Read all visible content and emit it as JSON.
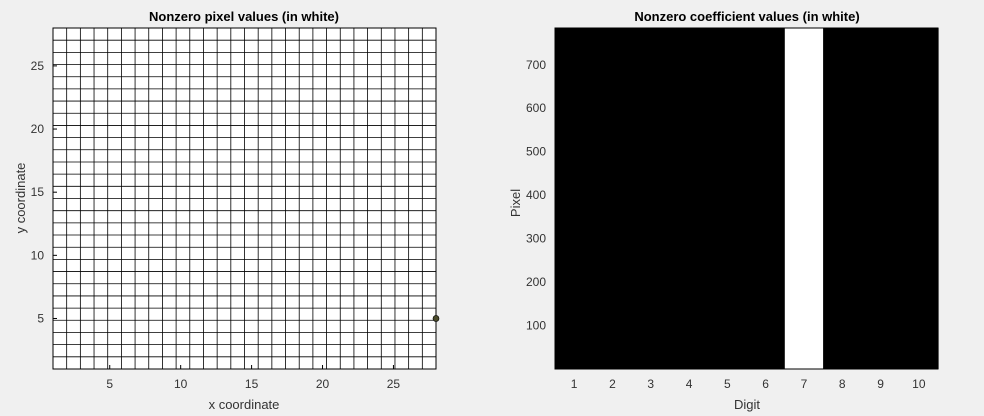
{
  "chart_data": [
    {
      "type": "heatmap",
      "title": "Nonzero pixel values (in white)",
      "xlabel": "x coordinate",
      "ylabel": "y coordinate",
      "xlim": [
        1,
        28
      ],
      "ylim": [
        1,
        28
      ],
      "xticks": [
        5,
        10,
        15,
        20,
        25
      ],
      "yticks": [
        5,
        10,
        15,
        20,
        25
      ],
      "grid": "28x28 pixel grid",
      "marker": {
        "x": 28,
        "y": 5
      },
      "colors": {
        "background": "#ffffff",
        "grid": "#000000",
        "marker": "#4a4a2a"
      }
    },
    {
      "type": "heatmap",
      "title": "Nonzero coefficient values (in white)",
      "xlabel": "Digit",
      "ylabel": "Pixel",
      "xlim": [
        0.5,
        10.5
      ],
      "ylim": [
        0.5,
        784.5
      ],
      "xticks": [
        1,
        2,
        3,
        4,
        5,
        6,
        7,
        8,
        9,
        10
      ],
      "yticks": [
        100,
        200,
        300,
        400,
        500,
        600,
        700
      ],
      "nonzero_columns": [
        7
      ],
      "colors": {
        "zero": "#000000",
        "nonzero": "#ffffff"
      }
    }
  ]
}
